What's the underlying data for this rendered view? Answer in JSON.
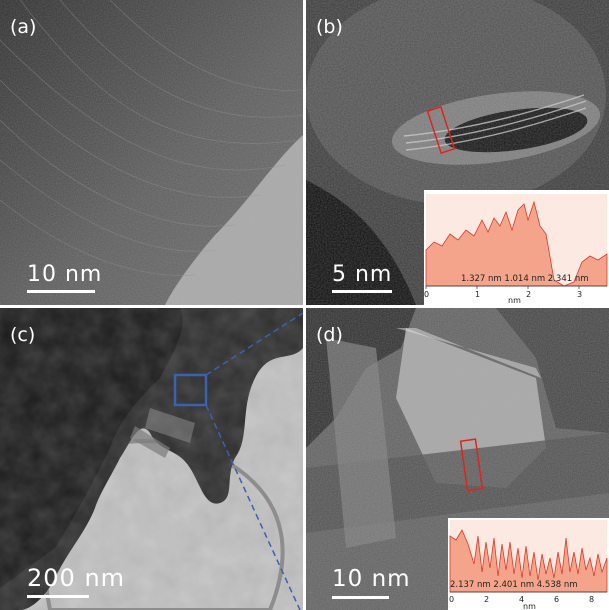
{
  "panels": {
    "a": {
      "label": "(a)",
      "scale_bar": "10 nm"
    },
    "b": {
      "label": "(b)",
      "scale_bar": "5 nm",
      "inset": {
        "measurements": "1.327 nm  1.014 nm  2.341 nm",
        "ticks": [
          "0",
          "1",
          "2",
          "3"
        ],
        "unit": "nm"
      }
    },
    "c": {
      "label": "(c)",
      "scale_bar": "200 nm"
    },
    "d": {
      "label": "(d)",
      "scale_bar": "10 nm",
      "inset": {
        "measurements": "2.137 nm 2.401 nm 4.538 nm",
        "ticks": [
          "0",
          "2",
          "4",
          "6",
          "8"
        ],
        "unit": "nm"
      }
    }
  },
  "colors": {
    "profile_fill": "#f4a48a",
    "profile_line": "#d9382a",
    "roi_box": "#e0241c",
    "zoom_box": "#3a62b0"
  }
}
